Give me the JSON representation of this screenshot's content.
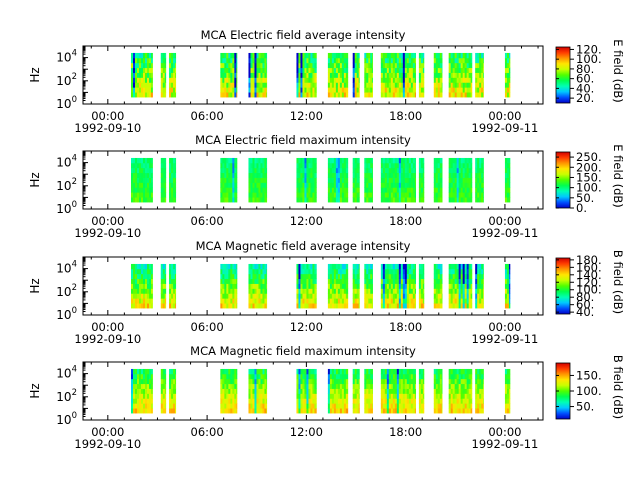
{
  "colors": {
    "colorbar": [
      "#0000c8",
      "#0050ff",
      "#00c8ff",
      "#00ffb4",
      "#00ff50",
      "#50ff00",
      "#c8ff00",
      "#ffe600",
      "#ff9600",
      "#ff3c00",
      "#d20000"
    ],
    "axis": "#000000",
    "background": "#ffffff"
  },
  "chart_data": [
    {
      "type": "heatmap",
      "title": "MCA  Electric field average intensity",
      "ylabel": "Hz",
      "y_scale": "log",
      "ylim": [
        1,
        100000
      ],
      "y_ticks": [
        {
          "exp": "0"
        },
        {
          "exp": "2"
        },
        {
          "exp": "4"
        }
      ],
      "xlim_hours": [
        -1.5,
        26.3
      ],
      "x_ticks": [
        {
          "hour": 0,
          "label": "00:00"
        },
        {
          "hour": 6,
          "label": "06:00"
        },
        {
          "hour": 12,
          "label": "12:00"
        },
        {
          "hour": 18,
          "label": "18:00"
        },
        {
          "hour": 24,
          "label": "00:00"
        }
      ],
      "x_dates": [
        "1992-09-10",
        "1992-09-11"
      ],
      "colorbar": {
        "label": "E field (dB)",
        "ticks": [
          "20.",
          "40.",
          "60.",
          "80.",
          "100.",
          "120."
        ],
        "range": [
          10,
          125
        ]
      },
      "data_hours": [
        [
          1.4,
          2.7
        ],
        [
          3.2,
          3.5
        ],
        [
          3.7,
          4.1
        ],
        [
          6.8,
          7.8
        ],
        [
          8.5,
          9.6
        ],
        [
          11.4,
          12.6
        ],
        [
          13.3,
          14.5
        ],
        [
          14.8,
          15.2
        ],
        [
          15.5,
          16.0
        ],
        [
          16.5,
          18.6
        ],
        [
          18.8,
          19.1
        ],
        [
          19.7,
          20.2
        ],
        [
          20.6,
          22.0
        ],
        [
          22.2,
          22.7
        ],
        [
          24.0,
          24.3
        ]
      ],
      "yrange_exp": [
        0.6,
        4.4
      ],
      "level": 70
    },
    {
      "type": "heatmap",
      "title": "MCA  Electric field maximum intensity",
      "ylabel": "Hz",
      "y_scale": "log",
      "ylim": [
        1,
        100000
      ],
      "y_ticks": [
        {
          "exp": "0"
        },
        {
          "exp": "2"
        },
        {
          "exp": "4"
        }
      ],
      "xlim_hours": [
        -1.5,
        26.3
      ],
      "x_ticks": [
        {
          "hour": 0,
          "label": "00:00"
        },
        {
          "hour": 6,
          "label": "06:00"
        },
        {
          "hour": 12,
          "label": "12:00"
        },
        {
          "hour": 18,
          "label": "18:00"
        },
        {
          "hour": 24,
          "label": "00:00"
        }
      ],
      "x_dates": [
        "1992-09-10",
        "1992-09-11"
      ],
      "colorbar": {
        "label": "E field (dB)",
        "ticks": [
          "0.",
          "50.",
          "100.",
          "150.",
          "200.",
          "250."
        ],
        "range": [
          0,
          275
        ]
      },
      "data_hours": [
        [
          1.4,
          2.7
        ],
        [
          3.2,
          3.5
        ],
        [
          3.7,
          4.1
        ],
        [
          6.8,
          7.8
        ],
        [
          8.5,
          9.6
        ],
        [
          11.4,
          12.6
        ],
        [
          13.3,
          14.5
        ],
        [
          14.8,
          15.2
        ],
        [
          15.5,
          16.0
        ],
        [
          16.5,
          18.6
        ],
        [
          18.8,
          19.1
        ],
        [
          19.7,
          20.2
        ],
        [
          20.6,
          22.0
        ],
        [
          22.2,
          22.7
        ],
        [
          24.0,
          24.3
        ]
      ],
      "yrange_exp": [
        0.6,
        4.4
      ],
      "level": 115
    },
    {
      "type": "heatmap",
      "title": "MCA  Magnetic field average intensity",
      "ylabel": "Hz",
      "y_scale": "log",
      "ylim": [
        1,
        100000
      ],
      "y_ticks": [
        {
          "exp": "0"
        },
        {
          "exp": "2"
        },
        {
          "exp": "4"
        }
      ],
      "xlim_hours": [
        -1.5,
        26.3
      ],
      "x_ticks": [
        {
          "hour": 0,
          "label": "00:00"
        },
        {
          "hour": 6,
          "label": "06:00"
        },
        {
          "hour": 12,
          "label": "12:00"
        },
        {
          "hour": 18,
          "label": "18:00"
        },
        {
          "hour": 24,
          "label": "00:00"
        }
      ],
      "x_dates": [
        "1992-09-10",
        "1992-09-11"
      ],
      "colorbar": {
        "label": "B field (dB)",
        "ticks": [
          "40.",
          "60.",
          "80.",
          "100.",
          "120.",
          "140.",
          "160.",
          "180."
        ],
        "range": [
          35,
          185
        ]
      },
      "data_hours": [
        [
          1.4,
          2.7
        ],
        [
          3.2,
          3.5
        ],
        [
          3.7,
          4.1
        ],
        [
          6.8,
          7.8
        ],
        [
          8.5,
          9.6
        ],
        [
          11.4,
          12.6
        ],
        [
          13.3,
          14.5
        ],
        [
          14.8,
          15.2
        ],
        [
          15.5,
          16.0
        ],
        [
          16.5,
          18.6
        ],
        [
          18.8,
          19.1
        ],
        [
          19.7,
          20.2
        ],
        [
          20.6,
          22.0
        ],
        [
          22.2,
          22.7
        ],
        [
          24.0,
          24.3
        ]
      ],
      "yrange_exp": [
        0.6,
        4.4
      ],
      "level": 110
    },
    {
      "type": "heatmap",
      "title": "MCA  Magnetic field maximum intensity",
      "ylabel": "Hz",
      "y_scale": "log",
      "ylim": [
        1,
        100000
      ],
      "y_ticks": [
        {
          "exp": "0"
        },
        {
          "exp": "2"
        },
        {
          "exp": "4"
        }
      ],
      "xlim_hours": [
        -1.5,
        26.3
      ],
      "x_ticks": [
        {
          "hour": 0,
          "label": "00:00"
        },
        {
          "hour": 6,
          "label": "06:00"
        },
        {
          "hour": 12,
          "label": "12:00"
        },
        {
          "hour": 18,
          "label": "18:00"
        },
        {
          "hour": 24,
          "label": "00:00"
        }
      ],
      "x_dates": [
        "1992-09-10",
        "1992-09-11"
      ],
      "colorbar": {
        "label": "B field (dB)",
        "ticks": [
          "50.",
          "100.",
          "150."
        ],
        "range": [
          10,
          190
        ]
      },
      "data_hours": [
        [
          1.4,
          2.7
        ],
        [
          3.2,
          3.5
        ],
        [
          3.7,
          4.1
        ],
        [
          6.8,
          7.8
        ],
        [
          8.5,
          9.6
        ],
        [
          11.4,
          12.6
        ],
        [
          13.3,
          14.5
        ],
        [
          14.8,
          15.2
        ],
        [
          15.5,
          16.0
        ],
        [
          16.5,
          18.6
        ],
        [
          18.8,
          19.1
        ],
        [
          19.7,
          20.2
        ],
        [
          20.6,
          22.0
        ],
        [
          22.2,
          22.7
        ],
        [
          24.0,
          24.3
        ]
      ],
      "yrange_exp": [
        0.6,
        4.4
      ],
      "level": 110
    }
  ]
}
